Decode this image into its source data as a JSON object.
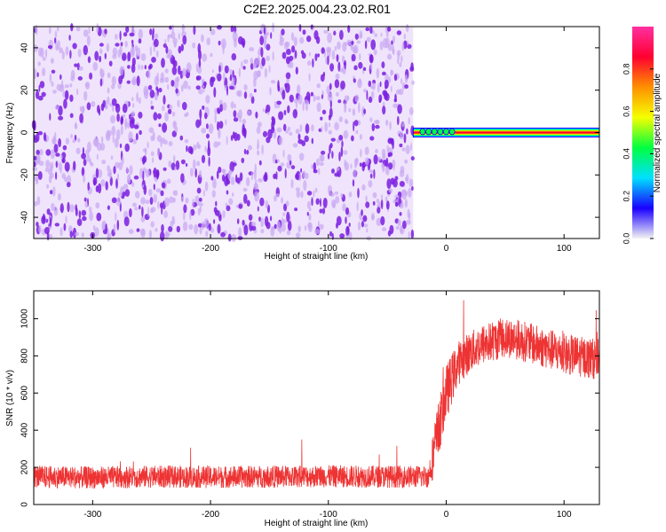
{
  "title": "C2E2.2025.004.23.02.R01",
  "colors": {
    "snr_line": "#ee3333",
    "noise_purple": "#7a1fe0",
    "noise_light": "#c9a8f2",
    "frame": "#000000",
    "grid": "#cccccc"
  },
  "chart_data": [
    {
      "type": "heatmap",
      "panel": "spectrogram",
      "xlabel": "Height of straight line (km)",
      "ylabel": "Frequency (Hz)",
      "xlim": [
        -350,
        130
      ],
      "ylim": [
        -50,
        50
      ],
      "xticks": [
        -300,
        -200,
        -100,
        0,
        100
      ],
      "yticks": [
        -40,
        -20,
        0,
        20,
        40
      ],
      "grid": false,
      "description_regions": [
        {
          "x_range": [
            -350,
            -28
          ],
          "y_range": [
            -50,
            50
          ],
          "level": 0.12
        },
        {
          "x_range": [
            -28,
            130
          ],
          "y_range": [
            -1,
            1
          ],
          "level": 0.9
        }
      ],
      "colorbar": {
        "label": "Normalized spectral amplitude",
        "range": [
          0.0,
          1.0
        ],
        "ticks": [
          0.0,
          0.2,
          0.4,
          0.6,
          0.8
        ],
        "colormap": [
          "#f3f3f3",
          "#1a00ff",
          "#00e0ff",
          "#00ff40",
          "#f5ff00",
          "#ff9000",
          "#ff0030",
          "#ff30a0"
        ]
      }
    },
    {
      "type": "line",
      "panel": "snr",
      "xlabel": "Height of straight line (km)",
      "ylabel": "SNR (10 * v/v)",
      "xlim": [
        -350,
        130
      ],
      "ylim": [
        0,
        1150
      ],
      "xticks": [
        -300,
        -200,
        -100,
        0,
        100
      ],
      "yticks": [
        0,
        200,
        400,
        600,
        800,
        1000
      ],
      "grid": false,
      "series": [
        {
          "x": [
            -350,
            -300,
            -250,
            -200,
            -150,
            -100,
            -50,
            -15,
            -10,
            0,
            10,
            20,
            30,
            40,
            50,
            60,
            70,
            80,
            90,
            100,
            110,
            120,
            130
          ],
          "values": [
            150,
            145,
            150,
            148,
            150,
            152,
            150,
            150,
            300,
            600,
            760,
            820,
            860,
            880,
            900,
            890,
            870,
            850,
            830,
            810,
            800,
            790,
            780
          ],
          "noise_amplitude": [
            60,
            60,
            60,
            60,
            60,
            60,
            60,
            60,
            150,
            150,
            120,
            110,
            110,
            110,
            110,
            110,
            110,
            110,
            110,
            110,
            110,
            110,
            110
          ]
        }
      ]
    }
  ]
}
